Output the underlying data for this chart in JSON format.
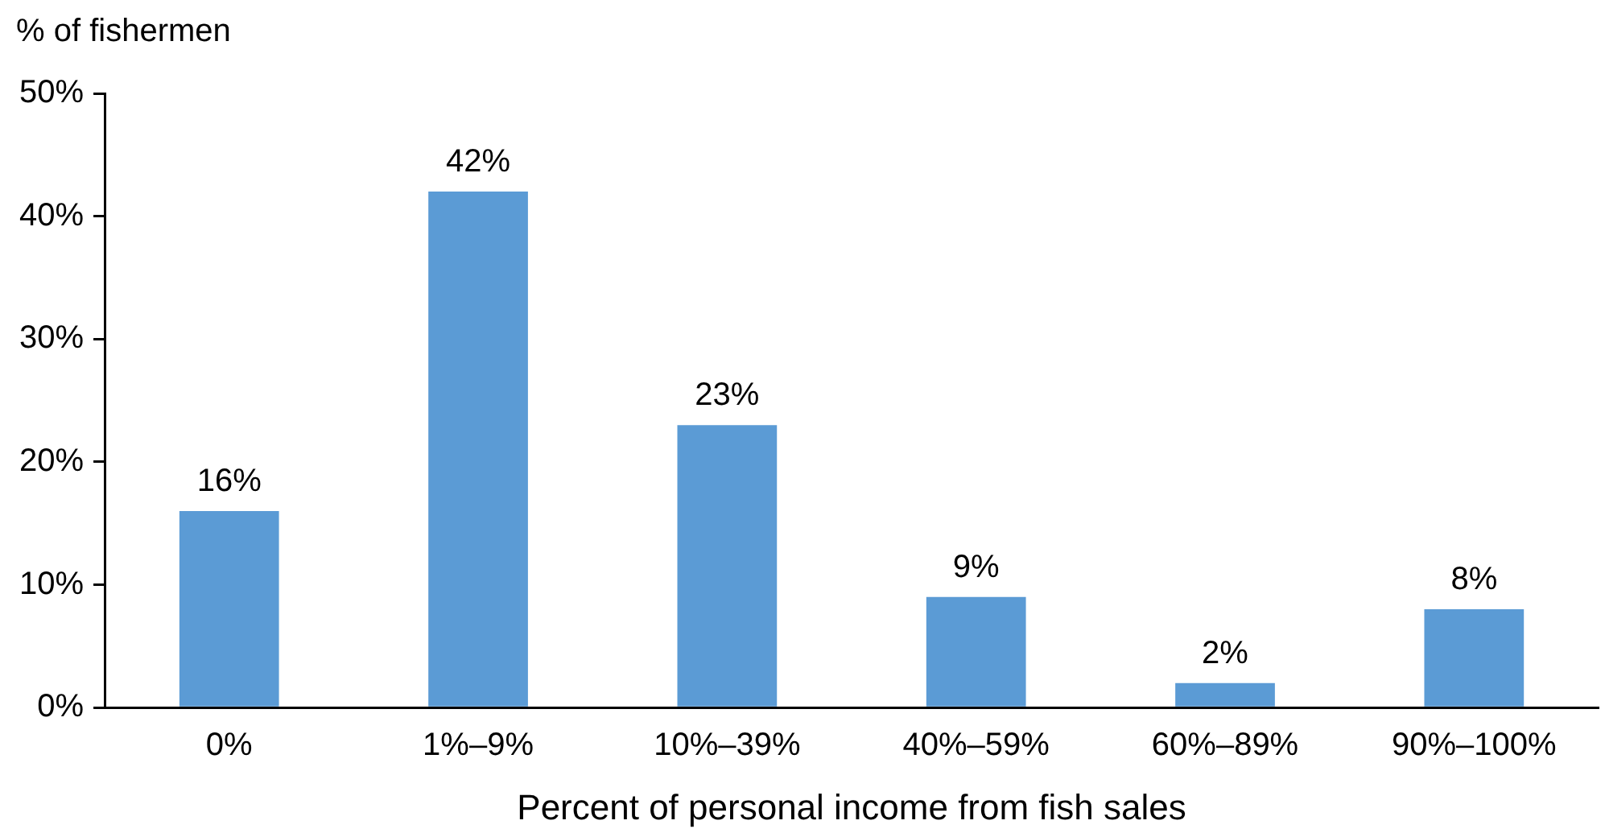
{
  "chart_data": {
    "type": "bar",
    "ylabel": "% of fishermen",
    "xlabel": "Percent of personal income from fish sales",
    "categories": [
      "0%",
      "1%–9%",
      "10%–39%",
      "40%–59%",
      "60%–89%",
      "90%–100%"
    ],
    "values": [
      16,
      42,
      23,
      9,
      2,
      8
    ],
    "color": "#5b9bd5",
    "ylim": [
      0,
      50
    ],
    "yticks": [
      {
        "value": 0,
        "label": "0%"
      },
      {
        "value": 10,
        "label": "10%"
      },
      {
        "value": 20,
        "label": "20%"
      },
      {
        "value": 30,
        "label": "30%"
      },
      {
        "value": 40,
        "label": "40%"
      },
      {
        "value": 50,
        "label": "50%"
      }
    ],
    "value_labels": [
      "16%",
      "42%",
      "23%",
      "9%",
      "2%",
      "8%"
    ],
    "grid": false,
    "legend": false
  }
}
